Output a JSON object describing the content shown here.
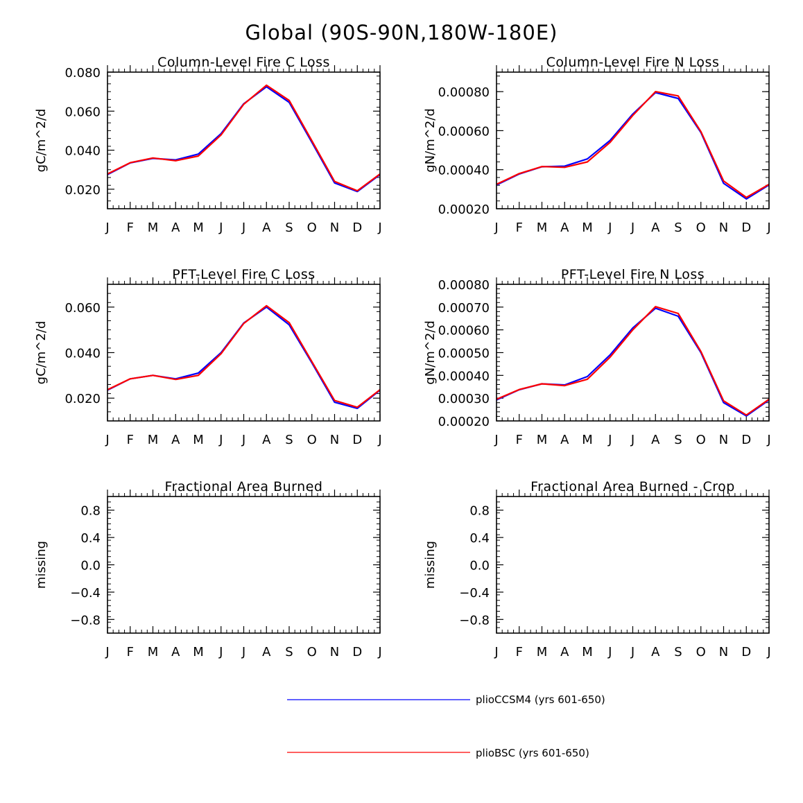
{
  "title": "Global (90S-90N,180W-180E)",
  "legend": [
    {
      "label": "plioCCSM4 (yrs 601-650)",
      "color": "#0000ff"
    },
    {
      "label": "plioBSC (yrs 601-650)",
      "color": "#ff0000"
    }
  ],
  "chart_data": [
    {
      "type": "line",
      "title": "Column-Level Fire C Loss",
      "xlabel": "",
      "ylabel": "gC/m^2/d",
      "categories": [
        "J",
        "F",
        "M",
        "A",
        "M",
        "J",
        "J",
        "A",
        "S",
        "O",
        "N",
        "D",
        "J"
      ],
      "ylim": [
        0.01,
        0.08
      ],
      "yticks": [
        "0.020",
        "0.040",
        "0.060",
        "0.080"
      ],
      "ytick_values": [
        0.02,
        0.04,
        0.06,
        0.08
      ],
      "series": [
        {
          "name": "plioCCSM4 (yrs 601-650)",
          "color": "#0000ff",
          "values": [
            0.0275,
            0.0335,
            0.0358,
            0.035,
            0.038,
            0.0485,
            0.0638,
            0.0725,
            0.0645,
            0.044,
            0.0232,
            0.0188,
            0.0275
          ]
        },
        {
          "name": "plioBSC (yrs 601-650)",
          "color": "#ff0000",
          "values": [
            0.0278,
            0.0336,
            0.036,
            0.0346,
            0.037,
            0.0478,
            0.0635,
            0.0733,
            0.0655,
            0.0448,
            0.024,
            0.0192,
            0.0278
          ]
        }
      ]
    },
    {
      "type": "line",
      "title": "Column-Level Fire N Loss",
      "xlabel": "",
      "ylabel": "gN/m^2/d",
      "categories": [
        "J",
        "F",
        "M",
        "A",
        "M",
        "J",
        "J",
        "A",
        "S",
        "O",
        "N",
        "D",
        "J"
      ],
      "ylim": [
        0.0002,
        0.0009
      ],
      "yticks": [
        "0.00020",
        "0.00040",
        "0.00060",
        "0.00080"
      ],
      "ytick_values": [
        0.0002,
        0.0004,
        0.0006,
        0.0008
      ],
      "series": [
        {
          "name": "plioCCSM4 (yrs 601-650)",
          "color": "#0000ff",
          "values": [
            0.000322,
            0.000378,
            0.000415,
            0.000418,
            0.000455,
            0.00055,
            0.000685,
            0.000795,
            0.000765,
            0.00059,
            0.00033,
            0.00025,
            0.000322
          ]
        },
        {
          "name": "plioBSC (yrs 601-650)",
          "color": "#ff0000",
          "values": [
            0.000325,
            0.00038,
            0.000416,
            0.000412,
            0.00044,
            0.00054,
            0.000678,
            0.0008,
            0.000778,
            0.000595,
            0.000342,
            0.000258,
            0.000325
          ]
        }
      ]
    },
    {
      "type": "line",
      "title": "PFT-Level Fire C Loss",
      "xlabel": "",
      "ylabel": "gC/m^2/d",
      "categories": [
        "J",
        "F",
        "M",
        "A",
        "M",
        "J",
        "J",
        "A",
        "S",
        "O",
        "N",
        "D",
        "J"
      ],
      "ylim": [
        0.01,
        0.07
      ],
      "yticks": [
        "0.020",
        "0.040",
        "0.060"
      ],
      "ytick_values": [
        0.02,
        0.04,
        0.06
      ],
      "series": [
        {
          "name": "plioCCSM4 (yrs 601-650)",
          "color": "#0000ff",
          "values": [
            0.0235,
            0.0285,
            0.03,
            0.0285,
            0.031,
            0.04,
            0.053,
            0.06,
            0.0522,
            0.0355,
            0.0182,
            0.0155,
            0.0235
          ]
        },
        {
          "name": "plioBSC (yrs 601-650)",
          "color": "#ff0000",
          "values": [
            0.0237,
            0.0285,
            0.03,
            0.0282,
            0.03,
            0.0395,
            0.0528,
            0.0606,
            0.0532,
            0.036,
            0.019,
            0.016,
            0.0237
          ]
        }
      ]
    },
    {
      "type": "line",
      "title": "PFT-Level Fire N Loss",
      "xlabel": "",
      "ylabel": "gN/m^2/d",
      "categories": [
        "J",
        "F",
        "M",
        "A",
        "M",
        "J",
        "J",
        "A",
        "S",
        "O",
        "N",
        "D",
        "J"
      ],
      "ylim": [
        0.0002,
        0.0008
      ],
      "yticks": [
        "0.00020",
        "0.00030",
        "0.00040",
        "0.00050",
        "0.00060",
        "0.00070",
        "0.00080"
      ],
      "ytick_values": [
        0.0002,
        0.0003,
        0.0004,
        0.0005,
        0.0006,
        0.0007,
        0.0008
      ],
      "series": [
        {
          "name": "plioCCSM4 (yrs 601-650)",
          "color": "#0000ff",
          "values": [
            0.000292,
            0.000337,
            0.000363,
            0.000358,
            0.000395,
            0.00049,
            0.000608,
            0.000695,
            0.00066,
            0.0005,
            0.00028,
            0.000222,
            0.000292
          ]
        },
        {
          "name": "plioBSC (yrs 601-650)",
          "color": "#ff0000",
          "values": [
            0.000295,
            0.000338,
            0.000363,
            0.000355,
            0.000383,
            0.00048,
            0.0006,
            0.000702,
            0.000672,
            0.000505,
            0.000288,
            0.000226,
            0.000295
          ]
        }
      ]
    },
    {
      "type": "line",
      "title": "Fractional Area Burned",
      "xlabel": "",
      "ylabel": "missing",
      "categories": [
        "J",
        "F",
        "M",
        "A",
        "M",
        "J",
        "J",
        "A",
        "S",
        "O",
        "N",
        "D",
        "J"
      ],
      "ylim": [
        -1.0,
        1.0
      ],
      "yticks": [
        "0.8",
        "0.4",
        "0.0",
        "−0.4",
        "−0.8"
      ],
      "ytick_values": [
        0.8,
        0.4,
        0.0,
        -0.4,
        -0.8
      ],
      "series": []
    },
    {
      "type": "line",
      "title": "Fractional Area Burned - Crop",
      "xlabel": "",
      "ylabel": "missing",
      "categories": [
        "J",
        "F",
        "M",
        "A",
        "M",
        "J",
        "J",
        "A",
        "S",
        "O",
        "N",
        "D",
        "J"
      ],
      "ylim": [
        -1.0,
        1.0
      ],
      "yticks": [
        "0.8",
        "0.4",
        "0.0",
        "−0.4",
        "−0.8"
      ],
      "ytick_values": [
        0.8,
        0.4,
        0.0,
        -0.4,
        -0.8
      ],
      "series": []
    }
  ]
}
